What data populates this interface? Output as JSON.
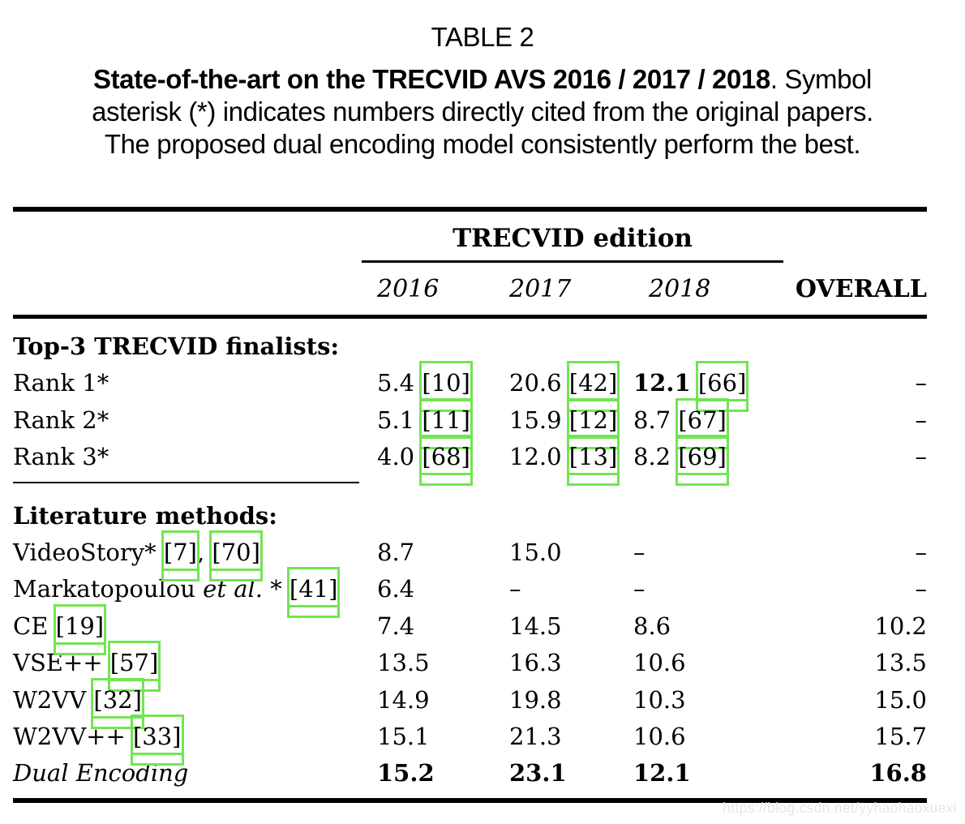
{
  "caption": {
    "label": "TABLE 2",
    "bold": "State-of-the-art on the TRECVID AVS 2016 / 2017 / 2018",
    "after_bold": ". Symbol",
    "line2": "asterisk (*) indicates numbers directly cited from the original papers.",
    "line3": "The proposed dual encoding model consistently perform the best."
  },
  "table": {
    "group_header": "TRECVID edition",
    "columns": [
      "2016",
      "2017",
      "2018"
    ],
    "overall_label": "OVERALL",
    "dash": "–",
    "sections": [
      {
        "title": "Top-3 TRECVID finalists:",
        "rows": [
          {
            "method": [
              {
                "t": "Rank 1*"
              }
            ],
            "cells": [
              {
                "v": "5.4",
                "cite": "[10]"
              },
              {
                "v": "20.6",
                "cite": "[42]"
              },
              {
                "v": "12.1",
                "cite": "[66]",
                "bold": true
              }
            ],
            "overall": "–"
          },
          {
            "method": [
              {
                "t": "Rank 2*"
              }
            ],
            "cells": [
              {
                "v": "5.1",
                "cite": "[11]"
              },
              {
                "v": "15.9",
                "cite": "[12]"
              },
              {
                "v": "8.7",
                "cite": "[67]"
              }
            ],
            "overall": "–"
          },
          {
            "method": [
              {
                "t": "Rank 3*"
              }
            ],
            "cells": [
              {
                "v": "4.0",
                "cite": "[68]"
              },
              {
                "v": "12.0",
                "cite": "[13]"
              },
              {
                "v": "8.2",
                "cite": "[69]"
              }
            ],
            "overall": "–"
          }
        ]
      },
      {
        "title": "Literature methods:",
        "rows": [
          {
            "method": [
              {
                "t": "VideoStory* "
              },
              {
                "cite": "[7]"
              },
              {
                "t": ", "
              },
              {
                "cite": "[70]"
              }
            ],
            "cells": [
              {
                "v": "8.7"
              },
              {
                "v": "15.0"
              },
              {
                "v": "–"
              }
            ],
            "overall": "–"
          },
          {
            "method": [
              {
                "t": "Markatopoulou "
              },
              {
                "t": "et al.",
                "i": true
              },
              {
                "t": " * "
              },
              {
                "cite": "[41]"
              }
            ],
            "cells": [
              {
                "v": "6.4"
              },
              {
                "v": "–"
              },
              {
                "v": "–"
              }
            ],
            "overall": "–"
          },
          {
            "method": [
              {
                "t": "CE "
              },
              {
                "cite": "[19]"
              }
            ],
            "cells": [
              {
                "v": "7.4"
              },
              {
                "v": "14.5"
              },
              {
                "v": "8.6"
              }
            ],
            "overall": "10.2"
          },
          {
            "method": [
              {
                "t": "VSE++ "
              },
              {
                "cite": "[57]"
              }
            ],
            "cells": [
              {
                "v": "13.5"
              },
              {
                "v": "16.3"
              },
              {
                "v": "10.6"
              }
            ],
            "overall": "13.5"
          },
          {
            "method": [
              {
                "t": "W2VV "
              },
              {
                "cite": "[32]"
              }
            ],
            "cells": [
              {
                "v": "14.9"
              },
              {
                "v": "19.8"
              },
              {
                "v": "10.3"
              }
            ],
            "overall": "15.0"
          },
          {
            "method": [
              {
                "t": "W2VV++ "
              },
              {
                "cite": "[33]"
              }
            ],
            "cells": [
              {
                "v": "15.1"
              },
              {
                "v": "21.3"
              },
              {
                "v": "10.6"
              }
            ],
            "overall": "15.7"
          },
          {
            "method": [
              {
                "t": "Dual Encoding",
                "i": true
              }
            ],
            "cells": [
              {
                "v": "15.2",
                "bold": true
              },
              {
                "v": "23.1",
                "bold": true
              },
              {
                "v": "12.1",
                "bold": true
              }
            ],
            "overall": "16.8",
            "bold_overall": true
          }
        ]
      }
    ]
  },
  "watermark": "https://blog.csdn.net/yyhaohaoxuexi",
  "colors": {
    "annotation_box_green": "#72e453",
    "watermark_gray": "#e6e6e6"
  }
}
